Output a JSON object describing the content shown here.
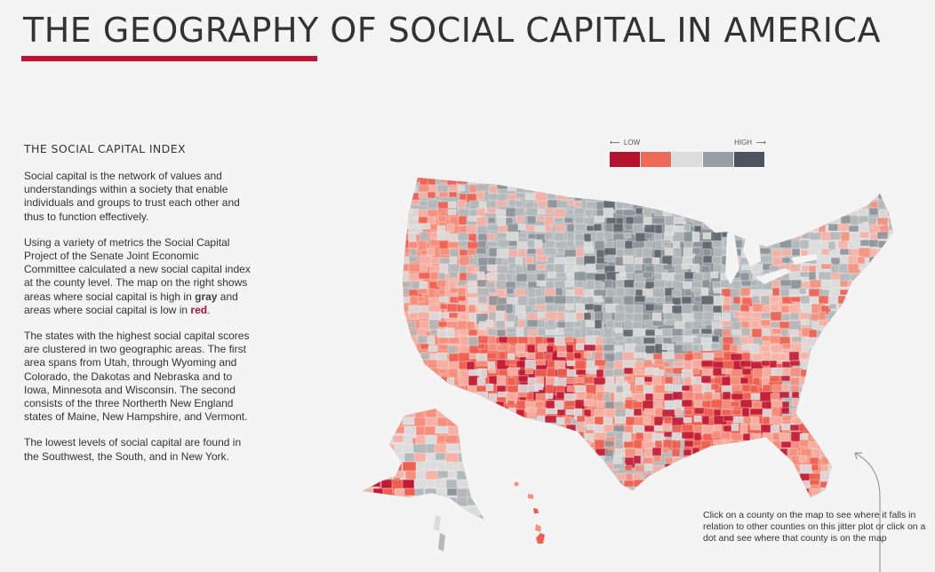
{
  "header": {
    "title": "THE GEOGRAPHY OF SOCIAL CAPITAL IN AMERICA",
    "underline_color": "#c8102e"
  },
  "sidebar": {
    "heading": "THE SOCIAL CAPITAL INDEX",
    "p1": "Social capital is the network of  values and understandings within a society that enable individuals and groups to trust each other and thus to function effectively.",
    "p2_intro": "Using a variety of metrics the Social Capital Project of the Senate Joint Economic Committee calculated a new social capital index at the county level. The map on the right shows areas where social capital is high in ",
    "p2_gray": "gray",
    "p2_middle": " and areas where social capital is low in ",
    "p2_red": "red",
    "p2_end": ".",
    "p3": "The states with the highest social capital scores are clustered in two geographic areas. The first area spans from Utah, through Wyoming and Colorado, the Dakotas and Nebraska and to Iowa, Minnesota and Wisconsin. The second consists of the three Northerth New England states of Maine, New Hampshire, and Vermont.",
    "p4": "The lowest levels of social capital are found in the Southwest, the South, and in New York."
  },
  "legend": {
    "low_label": "LOW",
    "high_label": "HIGH",
    "colors": [
      "#b5122f",
      "#ee6b57",
      "#dcdcdc",
      "#98a0a5",
      "#4c535c"
    ]
  },
  "map": {
    "colors": {
      "red_dark": "#c21a35",
      "red": "#ef5f50",
      "salmon": "#f5907d",
      "pink": "#f7b2a5",
      "light": "#dcdcdc",
      "gray": "#b3b8bb",
      "gray_dark": "#8d9499",
      "slate": "#5f666d"
    }
  },
  "callout": {
    "text": "Click on a county on the map to see where it falls in relation to other counties on this jitter plot or click on a dot and see where that county is on the map"
  }
}
